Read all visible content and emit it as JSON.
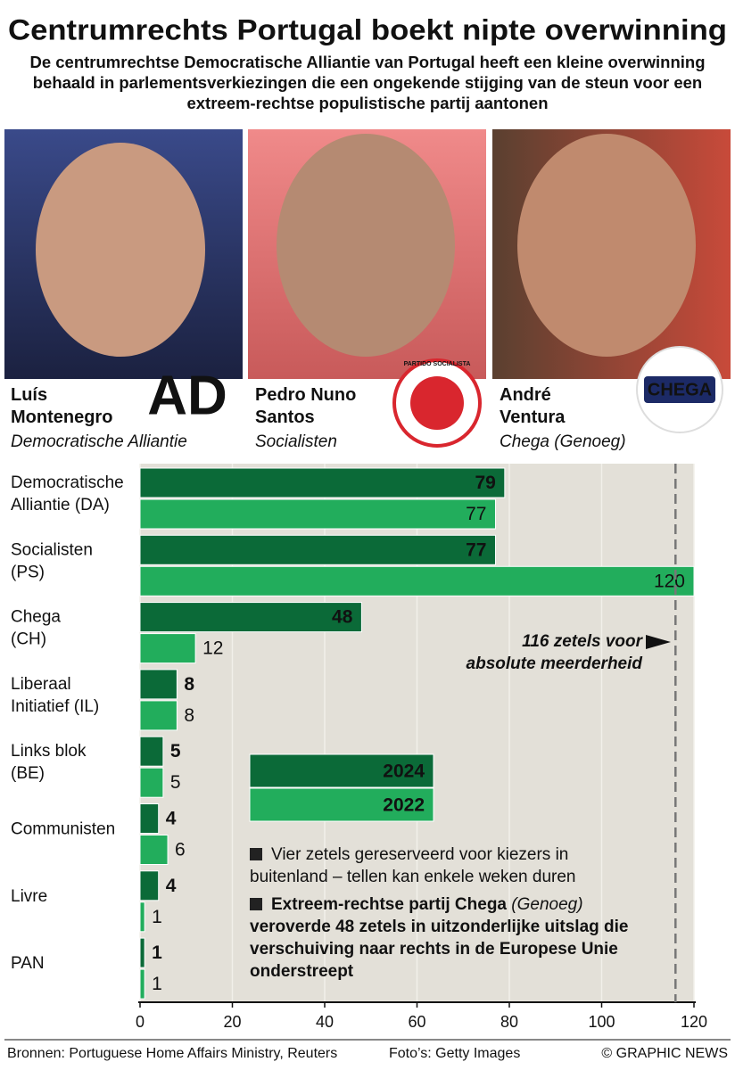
{
  "chart_data": {
    "type": "bar",
    "orientation": "horizontal",
    "title": "Centrumrechts Portugal boekt nipte overwinning",
    "subtitle": "De centrumrechtse Democratische Alliantie van Portugal heeft een kleine overwinning behaald in parlementsverkiezingen die een ongekende stijging van de steun voor een extreem-rechtse populistische partij aantonen",
    "people": [
      {
        "name": "Luís\nMontenegro",
        "party": "Democratische Alliantie",
        "logo": "AD"
      },
      {
        "name": "Pedro Nuno\nSantos",
        "party": "Socialisten",
        "logo": "PARTIDO SOCIALISTA"
      },
      {
        "name": "André\nVentura",
        "party": "Chega (Genoeg)",
        "logo": "CHEGA"
      }
    ],
    "categories": [
      "Democratische\nAlliantie (DA)",
      "Socialisten\n(PS)",
      "Chega\n(CH)",
      "Liberaal\nInitiatief (IL)",
      "Links blok\n(BE)",
      "Communisten",
      "Livre",
      "PAN"
    ],
    "series": [
      {
        "name": "2024",
        "color": "#0b6a38",
        "values": [
          79,
          77,
          48,
          8,
          5,
          4,
          4,
          1
        ]
      },
      {
        "name": "2022",
        "color": "#22ad5c",
        "values": [
          77,
          120,
          12,
          8,
          5,
          6,
          1,
          1
        ]
      }
    ],
    "xlim": [
      0,
      120
    ],
    "xticks": [
      0,
      20,
      40,
      60,
      80,
      100,
      120
    ],
    "grid": true,
    "reference": {
      "value": 116,
      "label": "116 zetels voor\nabsolute meerderheid"
    },
    "notes": [
      "Vier zetels gereserveerd voor kiezers in buitenland – tellen kan enkele weken duren",
      [
        "Extreem-rechtse partij Chega",
        "(Genoeg)",
        "veroverde 48 zetels in uitzonderlijke uitslag die verschuiving naar rechts in de Europese Unie onderstreept"
      ]
    ],
    "sources": "Bronnen: Portuguese Home Affairs Ministry, Reuters",
    "photo_credit": "Foto’s: Getty Images",
    "copyright": "© GRAPHIC NEWS"
  }
}
